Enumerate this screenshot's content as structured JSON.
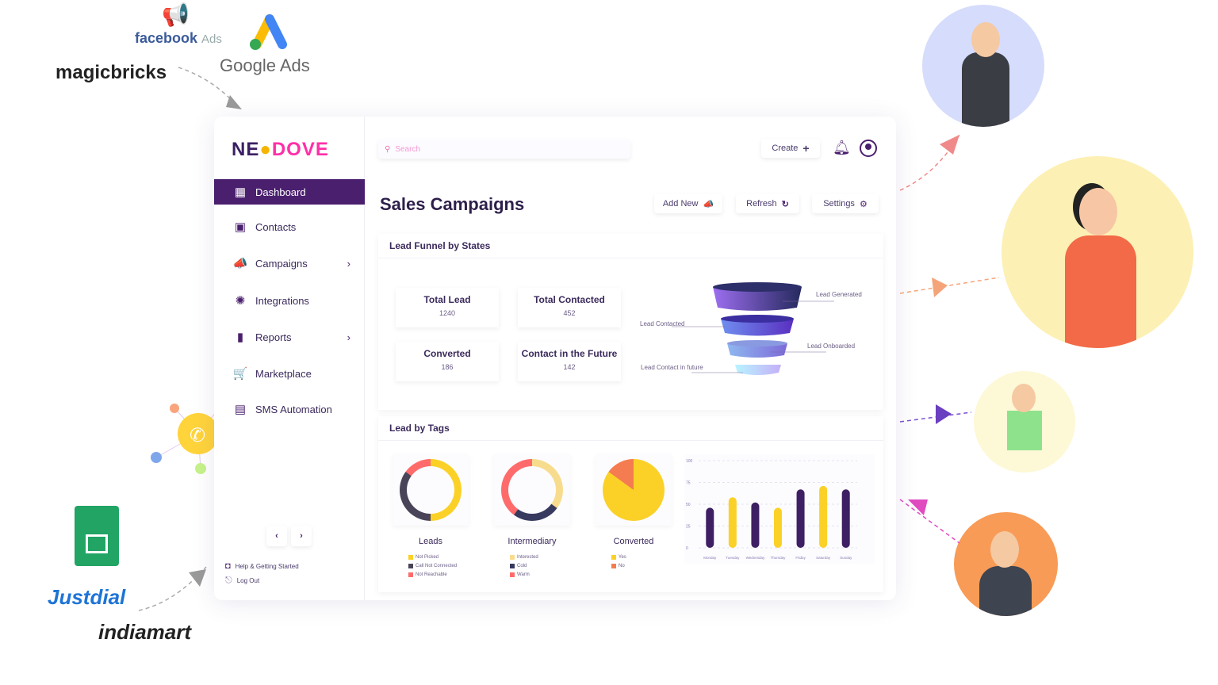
{
  "integrations": {
    "facebook": "facebook",
    "facebook_suffix": "Ads",
    "google": "Google Ads",
    "magicbricks": "magicbricks",
    "justdial": "Justdial",
    "indiamart": "indiamart"
  },
  "brand": {
    "neo": "NE",
    "dove": "DOVE",
    "primary": "#4a1f6e",
    "accent": "#ff2fa8"
  },
  "header": {
    "search_placeholder": "Search",
    "create_label": "Create"
  },
  "sidebar": {
    "items": [
      {
        "label": "Dashboard",
        "icon": "dashboard-icon",
        "active": true
      },
      {
        "label": "Contacts",
        "icon": "contacts-icon"
      },
      {
        "label": "Campaigns",
        "icon": "megaphone-icon",
        "submenu": true
      },
      {
        "label": "Integrations",
        "icon": "integrations-icon"
      },
      {
        "label": "Reports",
        "icon": "bar-chart-icon",
        "submenu": true
      },
      {
        "label": "Marketplace",
        "icon": "cart-icon"
      },
      {
        "label": "SMS Automation",
        "icon": "chat-icon"
      }
    ],
    "help": "Help & Getting Started",
    "logout": "Log Out"
  },
  "main": {
    "title": "Sales Campaigns",
    "add_new": "Add New",
    "refresh": "Refresh",
    "settings": "Settings",
    "funnel": {
      "heading": "Lead Funnel by States",
      "stats": [
        {
          "label": "Total Lead",
          "value": "1240"
        },
        {
          "label": "Total Contacted",
          "value": "452"
        },
        {
          "label": "Converted",
          "value": "186"
        },
        {
          "label": "Contact in the Future",
          "value": "142"
        }
      ],
      "stages": [
        "Lead Generated",
        "Lead Contacted",
        "Lead Onboarded",
        "Lead Contact in future"
      ]
    },
    "tags": {
      "heading": "Lead by Tags",
      "donuts": [
        {
          "label": "Leads",
          "segments": [
            {
              "name": "Not Picked",
              "share": 0.5,
              "color": "#fbd128"
            },
            {
              "name": "Call Not Connected",
              "share": 0.35,
              "color": "#4a4458"
            },
            {
              "name": "Not Reachable",
              "share": 0.15,
              "color": "#ff6b6b"
            }
          ]
        },
        {
          "label": "Intermediary",
          "segments": [
            {
              "name": "Interested",
              "share": 0.35,
              "color": "#f8dc8e"
            },
            {
              "name": "Cold",
              "share": 0.25,
              "color": "#373a5e"
            },
            {
              "name": "Warm",
              "share": 0.4,
              "color": "#ff6b6b"
            }
          ]
        },
        {
          "label": "Converted",
          "pie": true,
          "segments": [
            {
              "name": "Yes",
              "share": 0.85,
              "color": "#fbd128"
            },
            {
              "name": "No",
              "share": 0.15,
              "color": "#f47c50"
            }
          ]
        }
      ]
    }
  },
  "chart_data": {
    "type": "bar",
    "categories": [
      "Monday",
      "Tuesday",
      "Wednesday",
      "Thursday",
      "Friday",
      "Saturday",
      "Sunday"
    ],
    "values": [
      46,
      58,
      52,
      46,
      67,
      71,
      67
    ],
    "colors": [
      "#3f1f63",
      "#fbd128",
      "#3f1f63",
      "#fbd128",
      "#3f1f63",
      "#fbd128",
      "#3f1f63"
    ],
    "yticks": [
      "0",
      "25",
      "50",
      "75",
      "100"
    ],
    "ylim": [
      0,
      100
    ],
    "grid": true
  }
}
